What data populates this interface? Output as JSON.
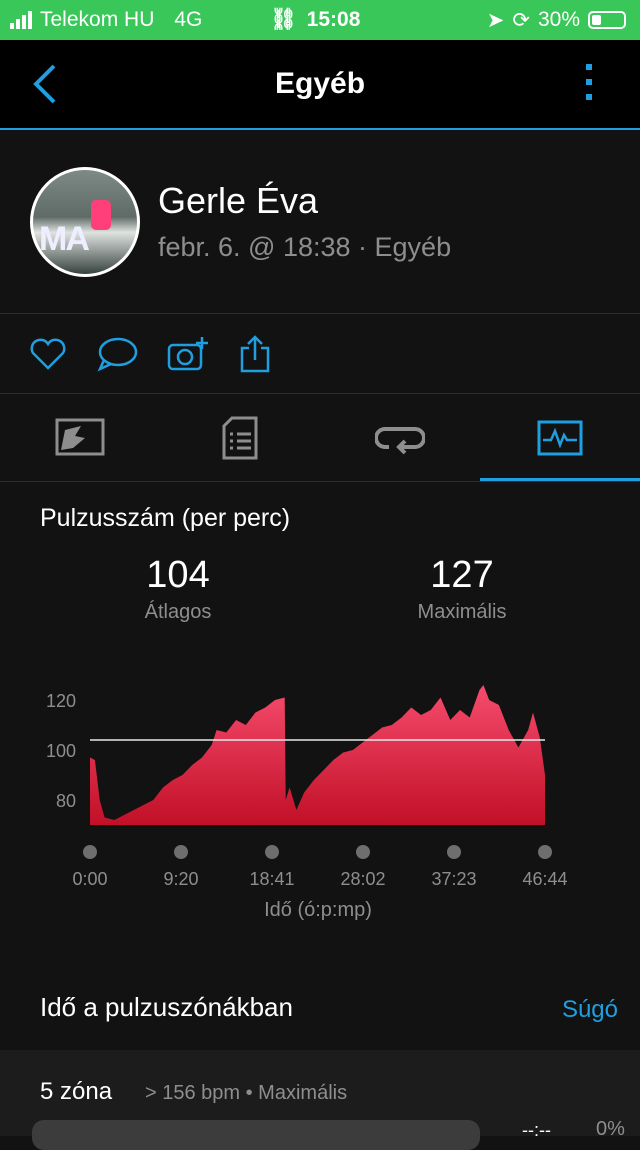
{
  "status_bar": {
    "carrier": "Telekom HU",
    "network": "4G",
    "time": "15:08",
    "battery": "30%",
    "battery_level": 0.3
  },
  "header": {
    "title": "Egyéb"
  },
  "profile": {
    "name": "Gerle Éva",
    "subtitle": "febr. 6. @ 18:38 · Egyéb",
    "avatar_text": "MA"
  },
  "actions": [
    "heart-icon",
    "comment-icon",
    "add-photo-icon",
    "share-icon"
  ],
  "tabs": [
    {
      "icon": "map-icon"
    },
    {
      "icon": "details-icon"
    },
    {
      "icon": "laps-icon"
    },
    {
      "icon": "heart-rate-chart-icon",
      "active": true
    }
  ],
  "heart_rate": {
    "title": "Pulzusszám (per perc)",
    "avg_value": "104",
    "avg_label": "Átlagos",
    "max_value": "127",
    "max_label": "Maximális"
  },
  "chart_data": {
    "type": "area",
    "xlabel": "Idő (ó:p:mp)",
    "x_ticks": [
      "0:00",
      "9:20",
      "18:41",
      "28:02",
      "37:23",
      "46:44"
    ],
    "y_ticks": [
      80,
      100,
      120
    ],
    "ylim": [
      70,
      127
    ],
    "xlim_minutes": [
      0,
      46.73
    ],
    "average_line": 104,
    "color": "#e8304f",
    "x_minutes": [
      0,
      0.5,
      1,
      1.5,
      2.5,
      3.5,
      4.5,
      5.5,
      6.5,
      7.5,
      8.5,
      9.5,
      10.5,
      11.5,
      12.5,
      13,
      14,
      15,
      16,
      17,
      18,
      19,
      20,
      20.1,
      20.5,
      21.2,
      22,
      23,
      24,
      25,
      26,
      27,
      28,
      29,
      30,
      31,
      32,
      33,
      34,
      35,
      36,
      37,
      38,
      39,
      40,
      40.4,
      41,
      42,
      43,
      44,
      45,
      45.5,
      46.2,
      46.73
    ],
    "bpm": [
      97,
      96,
      80,
      73,
      72,
      74,
      76,
      78,
      80,
      85,
      88,
      90,
      94,
      97,
      102,
      108,
      107,
      112,
      110,
      115,
      117,
      120,
      121,
      80,
      85,
      76,
      83,
      88,
      92,
      96,
      99,
      100,
      103,
      106,
      109,
      110,
      113,
      117,
      114,
      116,
      121,
      112,
      116,
      113,
      124,
      126,
      120,
      118,
      108,
      101,
      108,
      115,
      105,
      90
    ]
  },
  "zones": {
    "title": "Idő a pulzuszónákban",
    "help": "Súgó",
    "items": [
      {
        "name": "5 zóna",
        "desc": "> 156 bpm • Maximális",
        "time": "--:--",
        "percent": "0%",
        "fill": 0
      }
    ]
  }
}
